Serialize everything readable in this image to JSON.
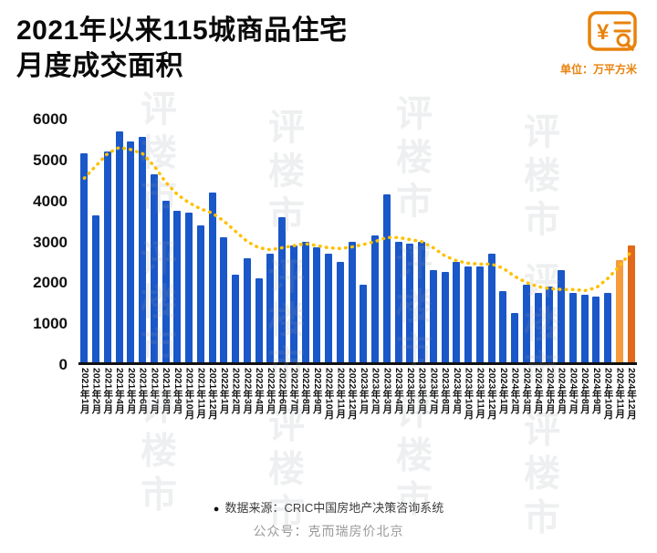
{
  "header": {
    "title_line1": "2021年以来115城商品住宅",
    "title_line2": "月度成交面积",
    "unit_label": "单位：万平方米",
    "brand_icon": "yuan-magnifier-icon"
  },
  "watermark_text": "评楼市",
  "footer": {
    "source_bullet": "●",
    "source": "数据来源：CRIC中国房地产决策咨询系统",
    "account": "公众号：克而瑞房价北京"
  },
  "colors": {
    "bar_blue": "#1A57C8",
    "bar_orange_light": "#F59B3D",
    "bar_orange_dark": "#E2691A",
    "trend_yellow": "#FFC000",
    "accent_orange": "#E8820C",
    "axis_black": "#111111"
  },
  "chart_data": {
    "type": "bar",
    "title": "2021年以来115城商品住宅月度成交面积",
    "unit": "万平方米",
    "ylabel": "",
    "xlabel": "",
    "ylim": [
      0,
      6000
    ],
    "yticks": [
      0,
      1000,
      2000,
      3000,
      4000,
      5000,
      6000
    ],
    "grid": false,
    "legend": "none",
    "categories": [
      "2021年1月",
      "2021年2月",
      "2021年3月",
      "2021年4月",
      "2021年5月",
      "2021年6月",
      "2021年7月",
      "2021年8月",
      "2021年9月",
      "2021年10月",
      "2021年11月",
      "2021年12月",
      "2022年1月",
      "2022年2月",
      "2022年3月",
      "2022年4月",
      "2022年5月",
      "2022年6月",
      "2022年7月",
      "2022年8月",
      "2022年9月",
      "2022年10月",
      "2022年11月",
      "2022年12月",
      "2023年1月",
      "2023年2月",
      "2023年3月",
      "2023年4月",
      "2023年5月",
      "2023年6月",
      "2023年7月",
      "2023年8月",
      "2023年9月",
      "2023年10月",
      "2023年11月",
      "2023年12月",
      "2024年1月",
      "2024年2月",
      "2024年3月",
      "2024年4月",
      "2024年5月",
      "2024年6月",
      "2024年7月",
      "2024年8月",
      "2024年9月",
      "2024年10月",
      "2024年11月",
      "2024年12月"
    ],
    "values": [
      5100,
      3600,
      5150,
      5650,
      5400,
      5500,
      4600,
      3950,
      3700,
      3650,
      3350,
      4150,
      3050,
      2150,
      2550,
      2050,
      2650,
      3550,
      2850,
      2950,
      2800,
      2650,
      2450,
      2950,
      1900,
      3100,
      4100,
      2950,
      2900,
      2950,
      2250,
      2200,
      2450,
      2350,
      2350,
      2650,
      1750,
      1200,
      1900,
      1700,
      1850,
      2250,
      1700,
      1650,
      1600,
      1700,
      2500,
      2850
    ],
    "bar_color": "#1A57C8",
    "highlights": {
      "46": "#F59B3D",
      "47": "#E2691A"
    },
    "trend_series": {
      "name": "smoothed-trend",
      "style": "dotted",
      "color": "#FFC000",
      "values": [
        4500,
        4800,
        5100,
        5250,
        5200,
        5100,
        4800,
        4400,
        4100,
        3900,
        3750,
        3650,
        3450,
        3200,
        2950,
        2800,
        2750,
        2800,
        2850,
        2900,
        2850,
        2800,
        2780,
        2820,
        2880,
        2950,
        3050,
        3050,
        3000,
        2950,
        2800,
        2600,
        2480,
        2420,
        2400,
        2400,
        2300,
        2100,
        1950,
        1850,
        1800,
        1780,
        1780,
        1750,
        1820,
        2050,
        2350,
        2700
      ]
    }
  }
}
